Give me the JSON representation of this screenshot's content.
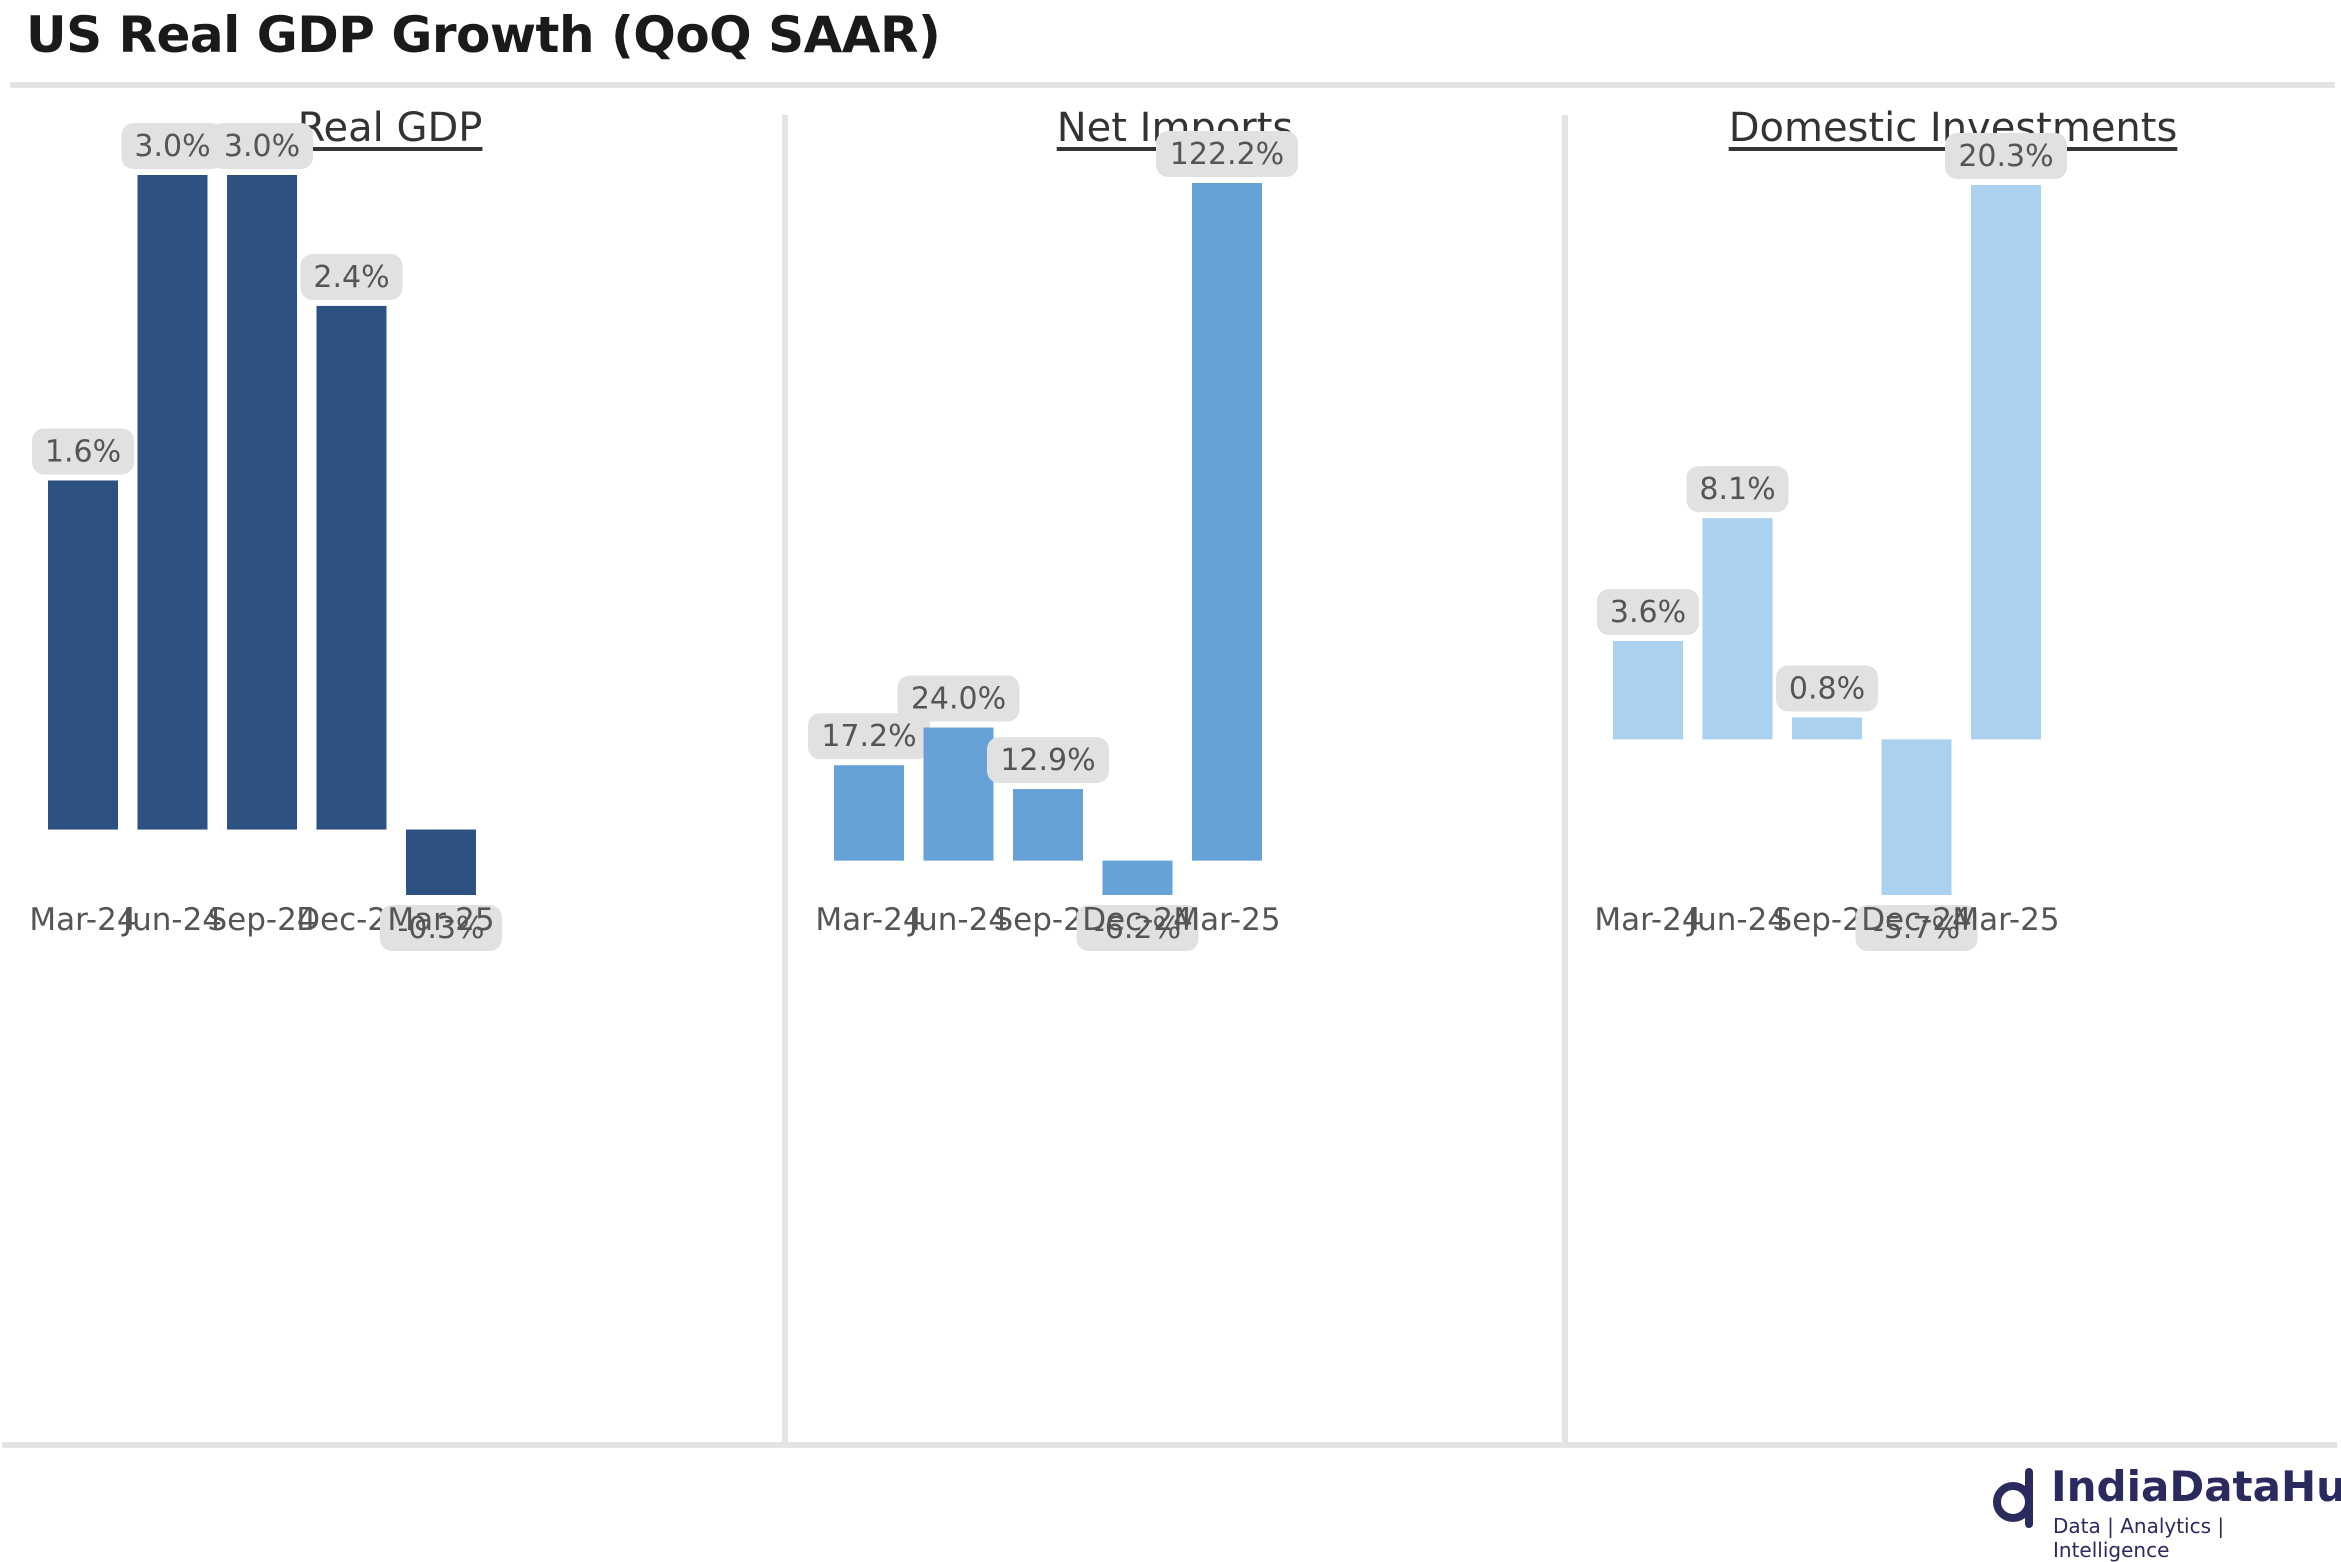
{
  "title": "US Real GDP Growth (QoQ SAAR)",
  "colors": {
    "real_gdp": "#2d5282",
    "net_imports": "#66a2d8",
    "domestic_investments": "#abd1f0",
    "label_bg": "#e1e1e1",
    "label_text": "#555555"
  },
  "chart_data": [
    {
      "type": "bar",
      "title": "Real GDP",
      "categories": [
        "Mar-24",
        "Jun-24",
        "Sep-24",
        "Dec-24",
        "Mar-25"
      ],
      "values": [
        1.6,
        3.0,
        3.0,
        2.4,
        -0.3
      ],
      "value_labels": [
        "1.6%",
        "3.0%",
        "3.0%",
        "2.4%",
        "-0.3%"
      ],
      "grid": false,
      "color": "#2d5282"
    },
    {
      "type": "bar",
      "title": "Net Imports",
      "categories": [
        "Mar-24",
        "Jun-24",
        "Sep-24",
        "Dec-24",
        "Mar-25"
      ],
      "values": [
        17.2,
        24.0,
        12.9,
        -6.2,
        122.2
      ],
      "value_labels": [
        "17.2%",
        "24.0%",
        "12.9%",
        "-6.2%",
        "122.2%"
      ],
      "grid": false,
      "color": "#66a2d8"
    },
    {
      "type": "bar",
      "title": "Domestic Investments",
      "categories": [
        "Mar-24",
        "Jun-24",
        "Sep-24",
        "Dec-24",
        "Mar-25"
      ],
      "values": [
        3.6,
        8.1,
        0.8,
        -5.7,
        20.3
      ],
      "value_labels": [
        "3.6%",
        "8.1%",
        "0.8%",
        "-5.7%",
        "20.3%"
      ],
      "grid": false,
      "color": "#abd1f0"
    }
  ],
  "logo": {
    "name": "IndiaDataHub",
    "tagline": "Data | Analytics | Intelligence"
  }
}
